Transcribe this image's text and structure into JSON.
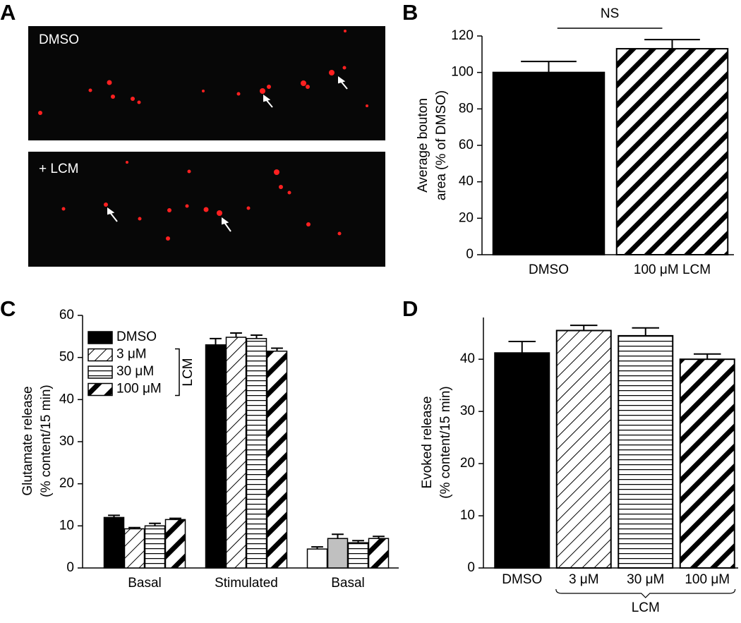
{
  "image_panel": {
    "panel": "A",
    "images": [
      "DMSO",
      "+ LCM"
    ]
  },
  "chart_data": [
    {
      "type": "bar",
      "panel": "B",
      "ylabel": [
        "Average bouton",
        "area (% of DMSO)"
      ],
      "annotation": "NS",
      "categories": [
        "DMSO",
        "100 μM LCM"
      ],
      "values": [
        100,
        113
      ],
      "errors": [
        6,
        5
      ],
      "fills": [
        "black",
        "hatch-thick"
      ],
      "ylim": [
        0,
        120
      ],
      "yticks": [
        0,
        20,
        40,
        60,
        80,
        100,
        120
      ]
    },
    {
      "type": "grouped_bar",
      "panel": "C",
      "ylabel": [
        "Glutamate release",
        "(% content/15 min)"
      ],
      "categories": [
        "Basal",
        "Stimulated",
        "Basal"
      ],
      "legend_group_label": "LCM",
      "legend": "upper left",
      "series": [
        {
          "name": "DMSO",
          "values": [
            12,
            53,
            4.5
          ],
          "errors": [
            0.5,
            1.5,
            0.5
          ],
          "fills": [
            "black",
            "black",
            "white"
          ]
        },
        {
          "name": "3 μM",
          "values": [
            9.3,
            54.8,
            7
          ],
          "errors": [
            0.3,
            1,
            1
          ],
          "fills": [
            "hatch-thin",
            "hatch-thin",
            "#c0c0c0"
          ]
        },
        {
          "name": "30 μM",
          "values": [
            10,
            54.5,
            6
          ],
          "errors": [
            0.6,
            0.8,
            0.5
          ],
          "fills": [
            "hlines",
            "hlines",
            "hlines"
          ]
        },
        {
          "name": "100 μM",
          "values": [
            11.5,
            51.5,
            7
          ],
          "errors": [
            0.3,
            0.7,
            0.5
          ],
          "fills": [
            "hatch-thick",
            "hatch-thick",
            "hatch-thick"
          ]
        }
      ],
      "ylim": [
        0,
        60
      ],
      "yticks": [
        0,
        10,
        20,
        30,
        40,
        50,
        60
      ]
    },
    {
      "type": "bar",
      "panel": "D",
      "ylabel": [
        "Evoked release",
        "(% content/15 min)"
      ],
      "group_label": "LCM",
      "categories": [
        "DMSO",
        "3 μM",
        "30 μM",
        "100 μM"
      ],
      "values": [
        41.2,
        45.5,
        44.5,
        40
      ],
      "errors": [
        2.2,
        1,
        1.5,
        1
      ],
      "fills": [
        "black",
        "hatch-thin",
        "hlines",
        "hatch-thick"
      ],
      "ylim": [
        0,
        48
      ],
      "yticks": [
        0,
        10,
        20,
        30,
        40
      ]
    }
  ]
}
